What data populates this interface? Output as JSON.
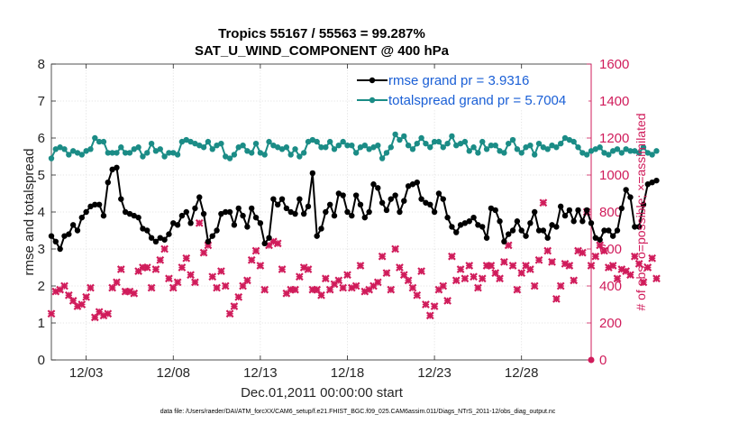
{
  "chart_data": {
    "type": "line",
    "title": "Tropics 55167 / 55563 = 99.287%",
    "subtitle": "SAT_U_WIND_COMPONENT @ 400 hPa",
    "xlabel": "Dec.01,2011 00:00:00 start",
    "ylabel": "rmse and totalspread",
    "ylabel_right": "# of obs: o=possible; ×=assimilated",
    "footnote": "data file: /Users/raeder/DAI/ATM_forcXX/CAM6_setup/f.e21.FHIST_BGC.f09_025.CAM6assim.011/Diags_NTrS_2011-12/obs_diag_output.nc",
    "xlim": [
      1,
      32
    ],
    "ylim": [
      0,
      8
    ],
    "ylim_right": [
      0,
      1600
    ],
    "x_ticks": [
      3,
      8,
      13,
      18,
      23,
      28
    ],
    "x_tick_labels": [
      "12/03",
      "12/08",
      "12/13",
      "12/18",
      "12/23",
      "12/28"
    ],
    "y_ticks": [
      0,
      1,
      2,
      3,
      4,
      5,
      6,
      7,
      8
    ],
    "y_tick_labels": [
      "0",
      "1",
      "2",
      "3",
      "4",
      "5",
      "6",
      "7",
      "8"
    ],
    "y_ticks_right": [
      0,
      200,
      400,
      600,
      800,
      1000,
      1200,
      1400,
      1600
    ],
    "y_tick_labels_right": [
      "0",
      "200",
      "400",
      "600",
      "800",
      "1000",
      "1200",
      "1400",
      "1600"
    ],
    "x_step": 0.25,
    "x_start": 1,
    "series": [
      {
        "name": "rmse grand pr = 3.9316",
        "color": "#000000",
        "axis": "left",
        "values": [
          3.35,
          3.2,
          3.0,
          3.35,
          3.4,
          3.65,
          3.5,
          3.85,
          4.0,
          4.15,
          4.2,
          4.2,
          3.9,
          4.8,
          5.15,
          5.2,
          4.35,
          4.0,
          3.95,
          3.9,
          3.85,
          3.55,
          3.5,
          3.3,
          3.2,
          3.3,
          3.25,
          3.4,
          3.7,
          3.65,
          3.9,
          4.0,
          3.7,
          4.1,
          4.4,
          3.95,
          3.2,
          3.35,
          3.5,
          3.95,
          4.0,
          4.0,
          3.65,
          4.1,
          3.9,
          3.6,
          4.1,
          3.85,
          3.7,
          3.15,
          3.3,
          4.35,
          4.2,
          4.35,
          4.1,
          4.0,
          3.95,
          4.35,
          3.95,
          4.15,
          5.05,
          3.35,
          3.55,
          4.0,
          4.2,
          3.9,
          4.5,
          4.45,
          4.0,
          3.9,
          4.45,
          4.2,
          3.85,
          4.0,
          4.75,
          4.65,
          4.25,
          4.05,
          4.35,
          4.45,
          4.0,
          4.3,
          4.7,
          4.75,
          4.8,
          4.35,
          4.25,
          4.2,
          4.0,
          4.5,
          4.35,
          3.85,
          3.6,
          3.45,
          3.65,
          3.7,
          3.75,
          3.85,
          3.65,
          3.6,
          3.3,
          4.1,
          4.05,
          3.75,
          3.2,
          3.4,
          3.5,
          3.75,
          3.5,
          3.35,
          3.7,
          4.0,
          3.5,
          3.5,
          3.3,
          3.65,
          3.6,
          4.15,
          3.9,
          4.05,
          3.75,
          4.05,
          3.75,
          4.05,
          3.7,
          3.3,
          3.25,
          3.5,
          3.5,
          3.35,
          3.5,
          4.1,
          4.6,
          4.4,
          3.6,
          3.6,
          4.2,
          4.75,
          4.8,
          4.85
        ],
        "marker": "o"
      },
      {
        "name": "totalspread grand pr = 5.7004",
        "color": "#1b8c86",
        "axis": "left",
        "values": [
          5.45,
          5.7,
          5.75,
          5.7,
          5.55,
          5.65,
          5.6,
          5.55,
          5.65,
          5.7,
          6.0,
          5.9,
          5.9,
          5.6,
          5.6,
          5.6,
          5.75,
          5.6,
          5.6,
          5.7,
          5.75,
          5.5,
          5.6,
          5.85,
          5.65,
          5.7,
          5.5,
          5.6,
          5.6,
          5.55,
          5.9,
          5.95,
          5.9,
          5.85,
          5.8,
          5.75,
          5.9,
          5.7,
          5.8,
          5.85,
          5.5,
          5.45,
          5.55,
          5.75,
          5.8,
          5.65,
          5.6,
          5.85,
          5.6,
          5.55,
          5.9,
          5.8,
          5.75,
          5.7,
          5.75,
          5.55,
          5.7,
          5.5,
          5.6,
          5.9,
          5.95,
          5.9,
          5.75,
          5.75,
          5.9,
          5.7,
          5.8,
          5.9,
          5.8,
          5.8,
          5.6,
          5.75,
          5.8,
          5.7,
          5.75,
          5.8,
          5.45,
          5.6,
          5.75,
          6.1,
          5.95,
          6.05,
          5.8,
          5.7,
          5.85,
          6.0,
          5.85,
          5.75,
          5.9,
          5.9,
          5.75,
          5.85,
          6.05,
          5.8,
          5.85,
          5.9,
          5.65,
          5.75,
          5.6,
          5.9,
          5.7,
          5.8,
          5.8,
          5.65,
          5.6,
          5.85,
          5.95,
          5.7,
          5.6,
          5.75,
          5.8,
          5.55,
          5.85,
          5.75,
          5.7,
          5.8,
          5.75,
          5.85,
          6.0,
          5.95,
          5.9,
          5.75,
          5.6,
          5.55,
          5.65,
          5.7,
          5.75,
          5.6,
          5.55,
          5.65,
          5.7,
          5.6,
          5.7,
          5.65,
          5.65,
          5.6,
          5.75,
          5.6,
          5.55,
          5.65
        ],
        "marker": "o"
      },
      {
        "name": "# of obs assimilated",
        "color": "#d01c5b",
        "axis": "right",
        "marker": "x",
        "values": [
          250,
          370,
          380,
          400,
          350,
          320,
          290,
          300,
          340,
          390,
          230,
          260,
          240,
          250,
          390,
          420,
          490,
          370,
          370,
          360,
          480,
          500,
          500,
          390,
          490,
          540,
          600,
          440,
          390,
          420,
          500,
          550,
          460,
          420,
          740,
          580,
          620,
          450,
          390,
          480,
          400,
          250,
          290,
          340,
          400,
          430,
          540,
          590,
          510,
          380,
          620,
          640,
          630,
          490,
          360,
          380,
          380,
          450,
          500,
          490,
          380,
          380,
          350,
          440,
          380,
          410,
          430,
          390,
          460,
          390,
          400,
          510,
          370,
          380,
          400,
          420,
          560,
          470,
          380,
          600,
          500,
          460,
          430,
          390,
          350,
          480,
          300,
          240,
          290,
          380,
          400,
          320,
          560,
          430,
          490,
          440,
          510,
          450,
          390,
          440,
          510,
          510,
          470,
          440,
          530,
          620,
          510,
          380,
          470,
          510,
          490,
          400,
          540,
          850,
          590,
          530,
          330,
          400,
          520,
          510,
          430,
          590,
          580,
          800,
          510,
          560,
          620,
          590,
          500,
          510,
          440,
          490,
          480,
          460,
          560,
          520,
          420,
          500,
          550,
          440
        ]
      }
    ]
  }
}
